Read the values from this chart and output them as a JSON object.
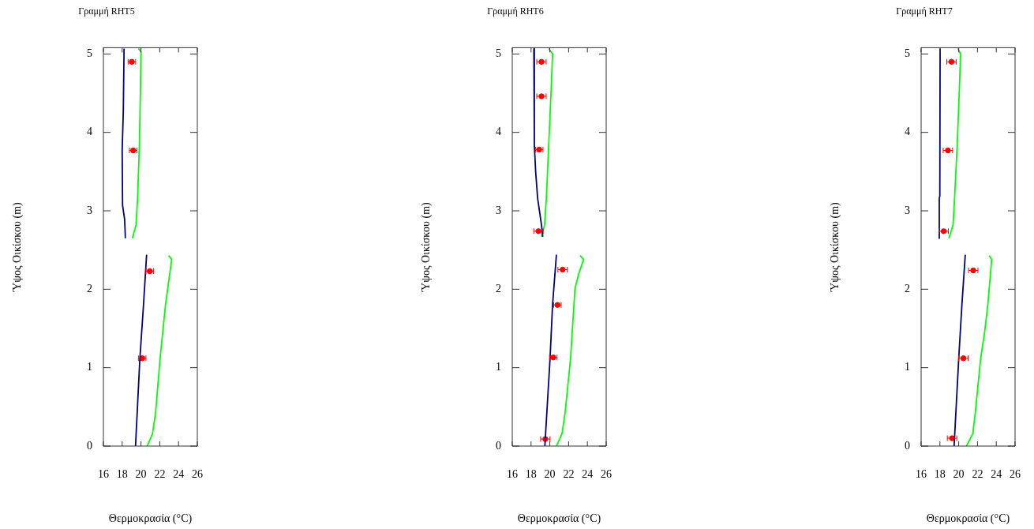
{
  "chart_data": [
    {
      "type": "line",
      "title": "Γραμμή RHT5",
      "xlabel": "Θερμοκρασία (°C)",
      "ylabel": "Ύψος Οικίσκου (m)",
      "xlim": [
        16,
        26
      ],
      "xticks": [
        16,
        18,
        20,
        22,
        24,
        26
      ],
      "ylim": [
        0,
        5.08
      ],
      "yticks": [
        0,
        1,
        2,
        3,
        4,
        5
      ],
      "grid": false,
      "series": [
        {
          "color": "#000080",
          "x": [
            18.2,
            18.12,
            18.0,
            18.04,
            18.26,
            18.34
          ],
          "values": [
            5.07,
            4.28,
            3.77,
            3.07,
            2.89,
            2.65
          ]
        },
        {
          "color": "#000080",
          "x": [
            20.6,
            20.27,
            19.88,
            19.42
          ],
          "values": [
            2.44,
            1.8,
            1.11,
            0
          ]
        },
        {
          "color": "#00ff00",
          "x": [
            19.72,
            20.0,
            19.94,
            19.83,
            19.64,
            19.47,
            19.09
          ],
          "values": [
            5.07,
            5.03,
            4.52,
            3.84,
            3.16,
            2.82,
            2.65
          ]
        },
        {
          "color": "#00ff00",
          "x": [
            22.94,
            23.27,
            22.61,
            22.03,
            21.56,
            21.23,
            20.66
          ],
          "values": [
            2.43,
            2.38,
            1.8,
            1.11,
            0.43,
            0.16,
            0
          ]
        },
        {
          "type": "scatter",
          "color": "#ff0000",
          "marker": "circle",
          "x": [
            19.03,
            19.17,
            20.93,
            20.13
          ],
          "values": [
            4.9,
            3.77,
            2.23,
            1.12
          ],
          "xerrors": [
            0.4,
            0.4,
            0.4,
            0.4
          ]
        }
      ]
    },
    {
      "type": "line",
      "title": "Γραμμή RHT6",
      "xlabel": "Θερμοκρασία (°C)",
      "ylabel": "Ύψος Οικίσκου (m)",
      "xlim": [
        16,
        26
      ],
      "xticks": [
        16,
        18,
        20,
        22,
        24,
        26
      ],
      "ylim": [
        0,
        5.08
      ],
      "yticks": [
        0,
        1,
        2,
        3,
        4,
        5
      ],
      "grid": false,
      "series": [
        {
          "color": "#000080",
          "x": [
            18.3,
            18.35,
            18.49,
            18.7,
            19.11,
            19.25
          ],
          "values": [
            5.07,
            3.84,
            3.5,
            3.16,
            2.82,
            2.67
          ]
        },
        {
          "color": "#000080",
          "x": [
            20.7,
            20.29,
            20.02,
            19.47
          ],
          "values": [
            2.44,
            1.8,
            1.11,
            0
          ]
        },
        {
          "color": "#00ff00",
          "x": [
            19.88,
            20.29,
            20.13,
            19.88,
            19.63,
            19.44,
            19.11
          ],
          "values": [
            5.07,
            5.0,
            4.52,
            3.84,
            3.16,
            2.82,
            2.67
          ]
        },
        {
          "color": "#00ff00",
          "x": [
            23.21,
            23.6,
            23.08,
            22.67,
            22.2,
            21.63,
            21.3,
            20.7
          ],
          "values": [
            2.43,
            2.38,
            2.2,
            2.0,
            1.11,
            0.43,
            0.16,
            0
          ]
        },
        {
          "type": "scatter",
          "color": "#ff0000",
          "marker": "circle",
          "x": [
            19.11,
            19.11,
            18.87,
            18.79,
            21.36,
            20.81,
            20.37,
            19.52
          ],
          "values": [
            4.9,
            4.46,
            3.78,
            2.74,
            2.25,
            1.8,
            1.13,
            0.09
          ],
          "xerrors": [
            0.5,
            0.5,
            0.4,
            0.5,
            0.5,
            0.4,
            0.4,
            0.5
          ]
        }
      ]
    },
    {
      "type": "line",
      "title": "Γραμμή RHT7",
      "xlabel": "Θερμοκρασία (°C)",
      "ylabel": "Ύψος Οικίσκου (m)",
      "xlim": [
        16,
        26
      ],
      "xticks": [
        16,
        18,
        20,
        22,
        24,
        26
      ],
      "ylim": [
        0,
        5.08
      ],
      "yticks": [
        0,
        1,
        2,
        3,
        4,
        5
      ],
      "grid": false,
      "series": [
        {
          "color": "#000080",
          "x": [
            18.02,
            17.99,
            17.93,
            17.93
          ],
          "values": [
            5.07,
            3.19,
            3.16,
            2.65
          ]
        },
        {
          "color": "#000080",
          "x": [
            20.7,
            20.34,
            20.0,
            19.51
          ],
          "values": [
            2.44,
            1.8,
            1.11,
            0
          ]
        },
        {
          "color": "#00ff00",
          "x": [
            19.92,
            20.2,
            20.06,
            19.84,
            19.56,
            19.4,
            18.96
          ],
          "values": [
            5.07,
            5.0,
            4.52,
            3.84,
            3.16,
            2.82,
            2.65
          ]
        },
        {
          "color": "#00ff00",
          "x": [
            23.24,
            23.51,
            23.1,
            22.77,
            22.33,
            21.77,
            21.5,
            20.83
          ],
          "values": [
            2.43,
            2.38,
            1.8,
            1.46,
            1.11,
            0.43,
            0.16,
            0
          ]
        },
        {
          "type": "scatter",
          "color": "#ff0000",
          "marker": "circle",
          "x": [
            19.23,
            18.85,
            18.4,
            21.55,
            20.5,
            19.29
          ],
          "values": [
            4.9,
            3.77,
            2.74,
            2.24,
            1.12,
            0.1
          ],
          "xerrors": [
            0.5,
            0.5,
            0.5,
            0.5,
            0.5,
            0.5
          ]
        }
      ]
    }
  ]
}
